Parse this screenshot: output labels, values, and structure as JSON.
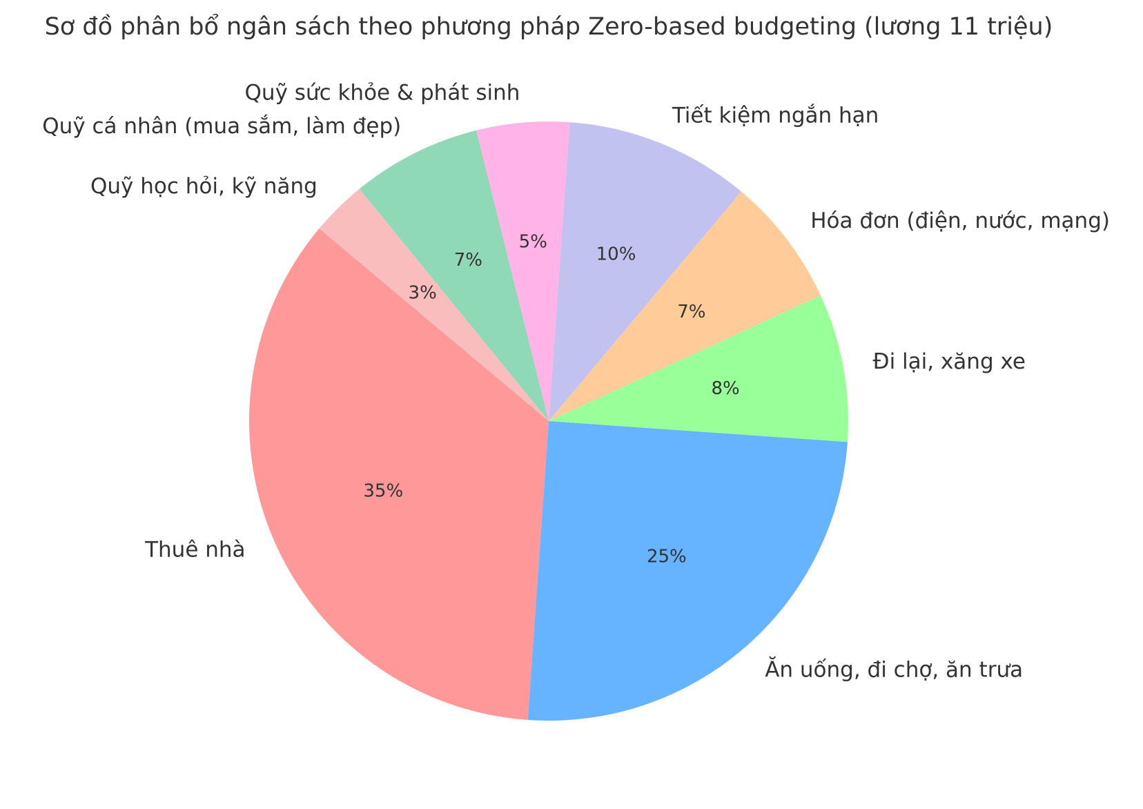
{
  "chart_data": {
    "type": "pie",
    "title": "Sơ đồ phân bổ ngân sách theo phương pháp Zero-based budgeting (lương 11 triệu)",
    "slices": [
      {
        "label": "Thuê nhà",
        "value": 35,
        "pct_label": "35%",
        "color": "#ff9999"
      },
      {
        "label": "Ăn uống, đi chợ, ăn trưa",
        "value": 25,
        "pct_label": "25%",
        "color": "#66b3ff"
      },
      {
        "label": "Đi lại, xăng xe",
        "value": 8,
        "pct_label": "8%",
        "color": "#99ff99"
      },
      {
        "label": "Hóa đơn (điện, nước, mạng)",
        "value": 7,
        "pct_label": "7%",
        "color": "#ffcc99"
      },
      {
        "label": "Tiết kiệm ngắn hạn",
        "value": 10,
        "pct_label": "10%",
        "color": "#c2c2f0"
      },
      {
        "label": "Quỹ sức khỏe & phát sinh",
        "value": 5,
        "pct_label": "5%",
        "color": "#ffb3e6"
      },
      {
        "label": "Quỹ cá nhân (mua sắm, làm đẹp)",
        "value": 7,
        "pct_label": "7%",
        "color": "#90d9b6"
      },
      {
        "label": "Quỹ học hỏi, kỹ năng",
        "value": 3,
        "pct_label": "3%",
        "color": "#f9bdbd"
      }
    ]
  }
}
